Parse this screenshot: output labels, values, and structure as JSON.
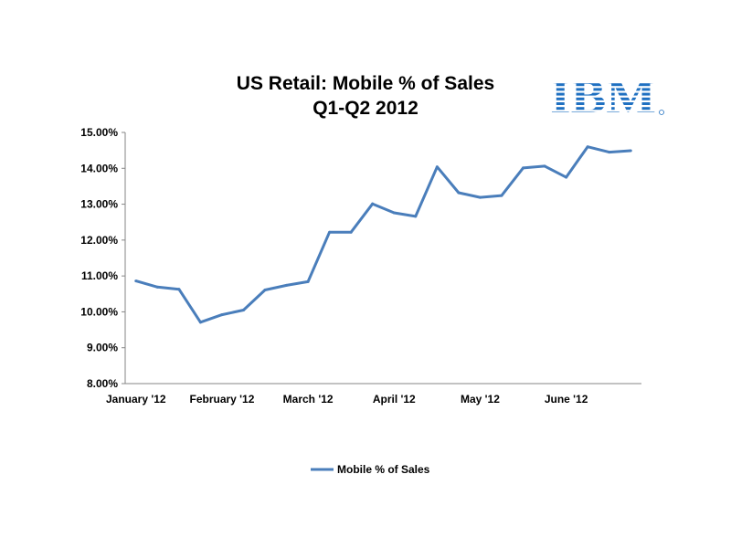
{
  "chart_data": {
    "type": "line",
    "title": [
      "US Retail: Mobile % of Sales",
      "Q1-Q2 2012"
    ],
    "xlabel": "",
    "ylabel": "",
    "ylim": [
      8,
      15
    ],
    "yticks": [
      "8.00%",
      "9.00%",
      "10.00%",
      "11.00%",
      "12.00%",
      "13.00%",
      "14.00%",
      "15.00%"
    ],
    "xtick_labels": [
      "January '12",
      "February '12",
      "March '12",
      "April '12",
      "May '12",
      "June '12"
    ],
    "grid": false,
    "legend": {
      "placement": "bottom",
      "entries": [
        "Mobile % of Sales"
      ]
    },
    "series": [
      {
        "name": "Mobile % of Sales",
        "color": "#4a7ebb",
        "values": [
          10.86,
          10.69,
          10.63,
          9.71,
          9.92,
          10.05,
          10.61,
          10.74,
          10.84,
          12.22,
          12.22,
          13.01,
          12.76,
          12.66,
          14.04,
          13.32,
          13.19,
          13.24,
          14.01,
          14.06,
          13.75,
          14.6,
          14.45,
          14.49
        ]
      }
    ]
  },
  "logo": {
    "text": "IBM",
    "color": "#1f70c1"
  }
}
